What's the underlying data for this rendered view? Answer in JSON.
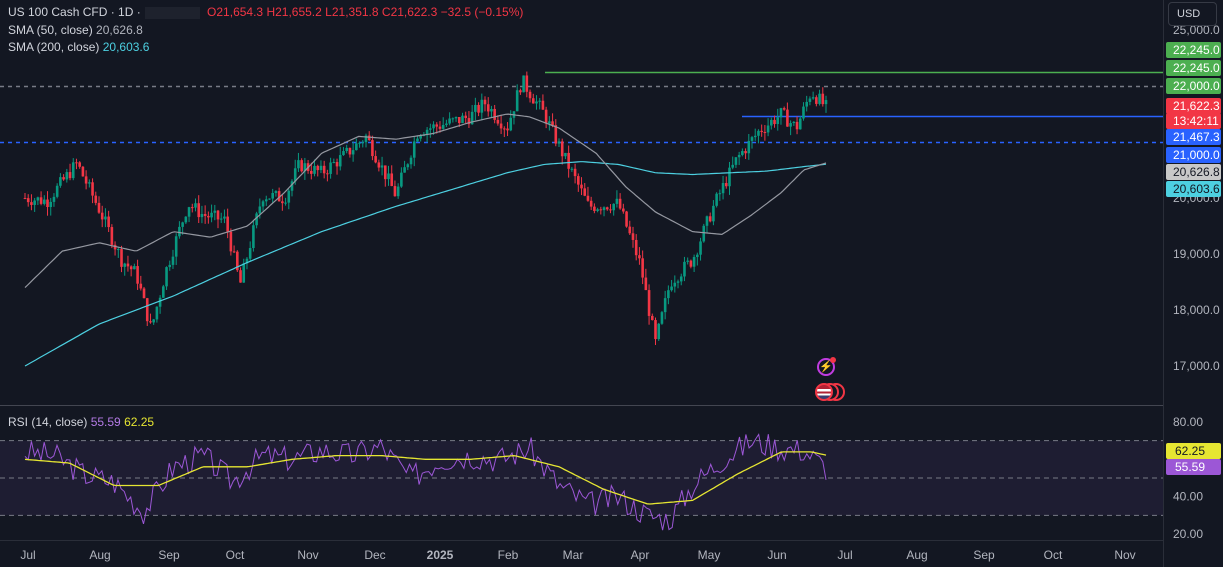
{
  "header": {
    "symbol": "US 100 Cash CFD · 1D ·",
    "open": "O21,654.3",
    "high": "H21,655.2",
    "low": "L21,351.8",
    "close": "C21,622.3",
    "change": "−32.5 (−0.15%)",
    "sma50_label": "SMA (50, close)",
    "sma50_value": "20,626.8",
    "sma200_label": "SMA (200, close)",
    "sma200_value": "20,603.6",
    "rsi_label": "RSI (14, close)",
    "rsi_value": "55.59",
    "rsi_ma_value": "62.25",
    "currency": "USD"
  },
  "colors": {
    "up": "#089981",
    "down": "#f23645",
    "sma50": "#9598a1",
    "sma200": "#4dd0e1",
    "rsi": "#9c57d6",
    "rsi_ma": "#e6e632",
    "resistance": "#4caf50",
    "support": "#2962ff",
    "background": "#131722"
  },
  "chart_data": {
    "type": "candlestick",
    "instrument": "US 100 Cash CFD",
    "interval": "1D",
    "ylim": [
      16300,
      25700
    ],
    "y_ticks": [
      "25,000.0",
      "20,000.0",
      "19,000.0",
      "18,000.0",
      "17,000.0"
    ],
    "x_ticks": [
      "Jul",
      "Aug",
      "Sep",
      "Oct",
      "Nov",
      "Dec",
      "2025",
      "Feb",
      "Mar",
      "Apr",
      "May",
      "Jun",
      "Jul",
      "Aug",
      "Sep",
      "Oct",
      "Nov"
    ],
    "price_path": [
      [
        2024.5,
        20000
      ],
      [
        2024.53,
        19950
      ],
      [
        2024.57,
        20620
      ],
      [
        2024.6,
        19800
      ],
      [
        2024.63,
        18900
      ],
      [
        2024.65,
        18650
      ],
      [
        2024.67,
        17650
      ],
      [
        2024.69,
        18700
      ],
      [
        2024.72,
        19900
      ],
      [
        2024.74,
        19700
      ],
      [
        2024.77,
        19600
      ],
      [
        2024.79,
        18450
      ],
      [
        2024.82,
        20050
      ],
      [
        2024.85,
        20000
      ],
      [
        2024.87,
        20600
      ],
      [
        2024.9,
        20450
      ],
      [
        2024.93,
        20750
      ],
      [
        2024.96,
        21100
      ],
      [
        2025.0,
        20050
      ],
      [
        2025.03,
        21200
      ],
      [
        2025.06,
        21300
      ],
      [
        2025.1,
        21450
      ],
      [
        2025.12,
        21700
      ],
      [
        2025.15,
        21250
      ],
      [
        2025.17,
        22100
      ],
      [
        2025.2,
        21500
      ],
      [
        2025.23,
        20650
      ],
      [
        2025.26,
        19850
      ],
      [
        2025.3,
        19900
      ],
      [
        2025.33,
        18800
      ],
      [
        2025.35,
        17400
      ],
      [
        2025.37,
        18500
      ],
      [
        2025.4,
        18900
      ],
      [
        2025.43,
        19900
      ],
      [
        2025.46,
        20700
      ],
      [
        2025.49,
        21200
      ],
      [
        2025.52,
        21500
      ],
      [
        2025.54,
        21250
      ],
      [
        2025.56,
        21900
      ],
      [
        2025.58,
        21622.3
      ]
    ],
    "sma50_path": [
      [
        2024.5,
        18400
      ],
      [
        2024.55,
        19050
      ],
      [
        2024.6,
        19200
      ],
      [
        2024.65,
        19050
      ],
      [
        2024.7,
        19400
      ],
      [
        2024.75,
        19300
      ],
      [
        2024.8,
        19500
      ],
      [
        2024.85,
        20100
      ],
      [
        2024.9,
        20800
      ],
      [
        2024.95,
        21100
      ],
      [
        2025.0,
        21050
      ],
      [
        2025.05,
        21150
      ],
      [
        2025.1,
        21350
      ],
      [
        2025.15,
        21500
      ],
      [
        2025.18,
        21450
      ],
      [
        2025.22,
        21250
      ],
      [
        2025.27,
        20800
      ],
      [
        2025.31,
        20200
      ],
      [
        2025.35,
        19750
      ],
      [
        2025.4,
        19400
      ],
      [
        2025.44,
        19350
      ],
      [
        2025.48,
        19700
      ],
      [
        2025.52,
        20100
      ],
      [
        2025.55,
        20500
      ],
      [
        2025.58,
        20626.8
      ]
    ],
    "sma200_path": [
      [
        2024.5,
        17000
      ],
      [
        2024.6,
        17750
      ],
      [
        2024.7,
        18250
      ],
      [
        2024.8,
        18850
      ],
      [
        2024.9,
        19400
      ],
      [
        2025.0,
        19850
      ],
      [
        2025.1,
        20250
      ],
      [
        2025.15,
        20450
      ],
      [
        2025.2,
        20600
      ],
      [
        2025.25,
        20650
      ],
      [
        2025.3,
        20600
      ],
      [
        2025.35,
        20450
      ],
      [
        2025.4,
        20420
      ],
      [
        2025.45,
        20450
      ],
      [
        2025.5,
        20480
      ],
      [
        2025.55,
        20560
      ],
      [
        2025.58,
        20603.6
      ]
    ],
    "rsi_path": [
      [
        2024.5,
        64
      ],
      [
        2024.54,
        62
      ],
      [
        2024.58,
        52
      ],
      [
        2024.62,
        48
      ],
      [
        2024.66,
        32
      ],
      [
        2024.7,
        56
      ],
      [
        2024.74,
        62
      ],
      [
        2024.78,
        48
      ],
      [
        2024.82,
        62
      ],
      [
        2024.86,
        60
      ],
      [
        2024.9,
        65
      ],
      [
        2024.94,
        62
      ],
      [
        2024.98,
        67
      ],
      [
        2025.02,
        50
      ],
      [
        2025.06,
        60
      ],
      [
        2025.1,
        62
      ],
      [
        2025.14,
        60
      ],
      [
        2025.18,
        66
      ],
      [
        2025.22,
        46
      ],
      [
        2025.26,
        36
      ],
      [
        2025.3,
        40
      ],
      [
        2025.34,
        30
      ],
      [
        2025.37,
        28
      ],
      [
        2025.4,
        46
      ],
      [
        2025.44,
        60
      ],
      [
        2025.48,
        70
      ],
      [
        2025.52,
        66
      ],
      [
        2025.55,
        65
      ],
      [
        2025.58,
        55.59
      ]
    ],
    "rsi_ma_path": [
      [
        2024.5,
        60
      ],
      [
        2024.56,
        58
      ],
      [
        2024.62,
        46
      ],
      [
        2024.68,
        46
      ],
      [
        2024.74,
        56
      ],
      [
        2024.8,
        56
      ],
      [
        2024.86,
        60
      ],
      [
        2024.92,
        62
      ],
      [
        2024.98,
        62
      ],
      [
        2025.04,
        60
      ],
      [
        2025.1,
        60
      ],
      [
        2025.16,
        62
      ],
      [
        2025.22,
        56
      ],
      [
        2025.28,
        44
      ],
      [
        2025.34,
        36
      ],
      [
        2025.4,
        38
      ],
      [
        2025.46,
        52
      ],
      [
        2025.52,
        64
      ],
      [
        2025.56,
        64
      ],
      [
        2025.58,
        62.25
      ]
    ],
    "rsi_levels": [
      70,
      50,
      30
    ],
    "rsi_ticks": [
      "80.00",
      "40.00",
      "20.00"
    ],
    "horizontal_lines": [
      {
        "value": 22245.0,
        "label": "22,245.0",
        "style": "solid",
        "color": "#4caf50"
      },
      {
        "value": 22000.0,
        "label": "22,000.0",
        "style": "dashed",
        "color": "#787b86"
      },
      {
        "value": 21467.3,
        "label": "21,467.3",
        "style": "solid",
        "color": "#2962ff"
      },
      {
        "value": 21000.0,
        "label": "21,000.0",
        "style": "dashed",
        "color": "#2962ff"
      }
    ],
    "price_labels": [
      {
        "text": "22,245.0",
        "color": "#4caf50",
        "text_color": "#ffffff"
      },
      {
        "text": "22,245.0",
        "color": "#4caf50",
        "text_color": "#ffffff"
      },
      {
        "text": "22,000.0",
        "color": "#4caf50",
        "text_color": "#ffffff"
      },
      {
        "text": "21,622.3",
        "color": "#f23645",
        "text_color": "#ffffff"
      },
      {
        "text": "13:42:11",
        "color": "#f23645",
        "text_color": "#ffffff"
      },
      {
        "text": "21,467.3",
        "color": "#2962ff",
        "text_color": "#ffffff"
      },
      {
        "text": "21,000.0",
        "color": "#2962ff",
        "text_color": "#ffffff"
      },
      {
        "text": "20,626.8",
        "color": "#c8c8c8",
        "text_color": "#131722"
      },
      {
        "text": "20,603.6",
        "color": "#4dd0e1",
        "text_color": "#131722"
      }
    ],
    "rsi_labels": [
      {
        "text": "62.25",
        "color": "#e6e632",
        "text_color": "#131722"
      },
      {
        "text": "55.59",
        "color": "#9c57d6",
        "text_color": "#ffffff"
      }
    ]
  }
}
